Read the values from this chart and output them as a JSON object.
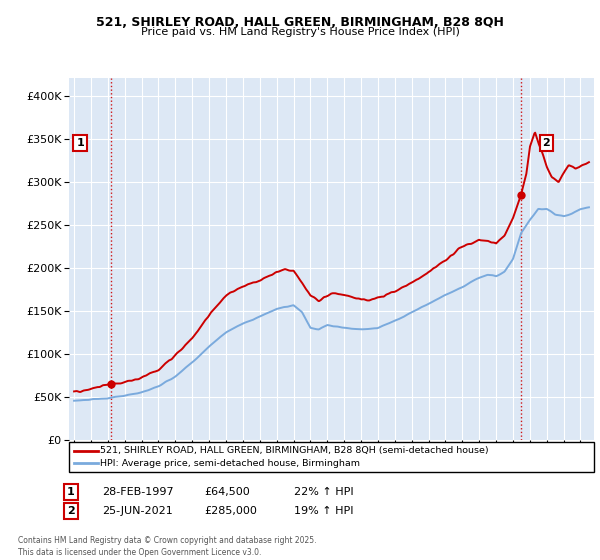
{
  "title_line1": "521, SHIRLEY ROAD, HALL GREEN, BIRMINGHAM, B28 8QH",
  "title_line2": "Price paid vs. HM Land Registry's House Price Index (HPI)",
  "ylim": [
    0,
    420000
  ],
  "yticks": [
    0,
    50000,
    100000,
    150000,
    200000,
    250000,
    300000,
    350000,
    400000
  ],
  "ytick_labels": [
    "£0",
    "£50K",
    "£100K",
    "£150K",
    "£200K",
    "£250K",
    "£300K",
    "£350K",
    "£400K"
  ],
  "xlim_start": 1994.7,
  "xlim_end": 2025.8,
  "property_color": "#cc0000",
  "hpi_color": "#7aaadd",
  "background_color": "#dde8f5",
  "grid_color": "#ffffff",
  "legend_label_property": "521, SHIRLEY ROAD, HALL GREEN, BIRMINGHAM, B28 8QH (semi-detached house)",
  "legend_label_hpi": "HPI: Average price, semi-detached house, Birmingham",
  "sale1_date": 1997.16,
  "sale1_price": 64500,
  "sale1_label": "1",
  "sale1_date_str": "28-FEB-1997",
  "sale1_price_str": "£64,500",
  "sale1_hpi_str": "22% ↑ HPI",
  "sale2_date": 2021.48,
  "sale2_price": 285000,
  "sale2_label": "2",
  "sale2_date_str": "25-JUN-2021",
  "sale2_price_str": "£285,000",
  "sale2_hpi_str": "19% ↑ HPI",
  "footer_text": "Contains HM Land Registry data © Crown copyright and database right 2025.\nThis data is licensed under the Open Government Licence v3.0."
}
